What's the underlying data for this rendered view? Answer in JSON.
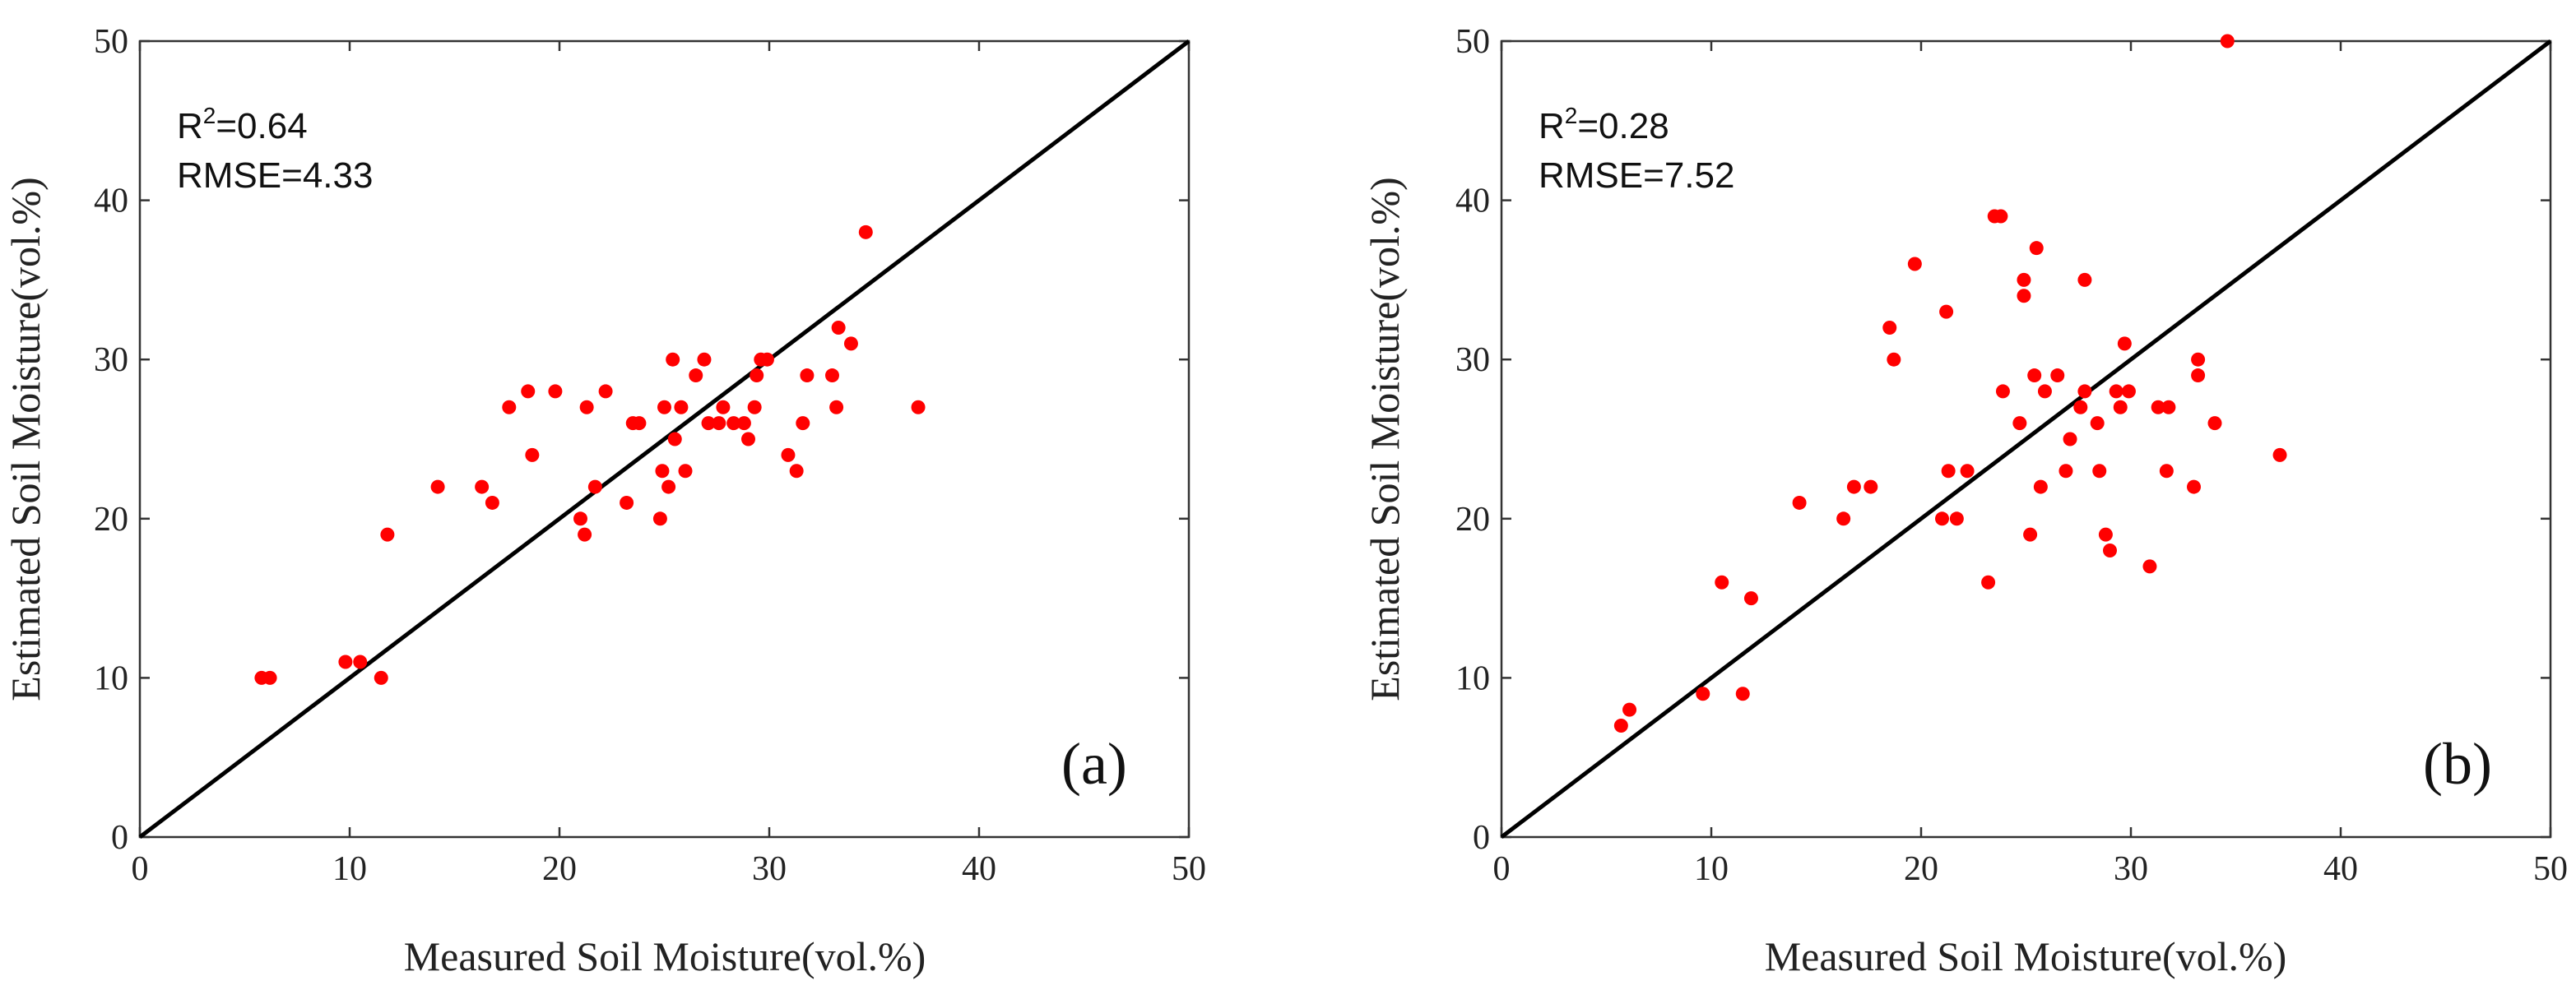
{
  "colors": {
    "point": "#ff0000",
    "line": "#000000",
    "axis": "#333333"
  },
  "chart_data": [
    {
      "type": "scatter",
      "panel_label": "(a)",
      "xlabel": "Measured Soil Moisture(vol.%)",
      "ylabel": "Estimated Soil Moisture(vol.%)",
      "xlim": [
        0,
        50
      ],
      "ylim": [
        0,
        50
      ],
      "xticks": [
        0,
        10,
        20,
        30,
        40,
        50
      ],
      "yticks": [
        0,
        10,
        20,
        30,
        40,
        50
      ],
      "reference_line": "1:1",
      "stats": {
        "r2_label": "R",
        "r2_sup": "2",
        "r2_value": "=0.64",
        "rmse": "RMSE=4.33"
      },
      "points": [
        [
          5.8,
          10
        ],
        [
          6.2,
          10
        ],
        [
          9.8,
          11
        ],
        [
          10.5,
          11
        ],
        [
          11.5,
          10
        ],
        [
          11.8,
          19
        ],
        [
          14.2,
          22
        ],
        [
          16.3,
          22
        ],
        [
          16.8,
          21
        ],
        [
          17.6,
          27
        ],
        [
          18.5,
          28
        ],
        [
          18.7,
          24
        ],
        [
          19.8,
          28
        ],
        [
          21.0,
          20
        ],
        [
          21.2,
          19
        ],
        [
          21.3,
          27
        ],
        [
          21.7,
          22
        ],
        [
          22.2,
          28
        ],
        [
          23.2,
          21
        ],
        [
          23.5,
          26
        ],
        [
          23.8,
          26
        ],
        [
          24.8,
          20
        ],
        [
          24.9,
          23
        ],
        [
          25.0,
          27
        ],
        [
          25.2,
          22
        ],
        [
          25.4,
          30
        ],
        [
          25.5,
          25
        ],
        [
          25.8,
          27
        ],
        [
          26.0,
          23
        ],
        [
          26.5,
          29
        ],
        [
          26.9,
          30
        ],
        [
          27.1,
          26
        ],
        [
          27.6,
          26
        ],
        [
          27.8,
          27
        ],
        [
          28.3,
          26
        ],
        [
          28.8,
          26
        ],
        [
          29.0,
          25
        ],
        [
          29.3,
          27
        ],
        [
          29.4,
          29
        ],
        [
          29.6,
          30
        ],
        [
          29.9,
          30
        ],
        [
          30.9,
          24
        ],
        [
          31.3,
          23
        ],
        [
          31.6,
          26
        ],
        [
          31.8,
          29
        ],
        [
          33.0,
          29
        ],
        [
          33.2,
          27
        ],
        [
          33.3,
          32
        ],
        [
          33.9,
          31
        ],
        [
          34.6,
          38
        ],
        [
          37.1,
          27
        ]
      ]
    },
    {
      "type": "scatter",
      "panel_label": "(b)",
      "xlabel": "Measured Soil Moisture(vol.%)",
      "ylabel": "Estimated Soil Moisture(vol.%)",
      "xlim": [
        0,
        50
      ],
      "ylim": [
        0,
        50
      ],
      "xticks": [
        0,
        10,
        20,
        30,
        40,
        50
      ],
      "yticks": [
        0,
        10,
        20,
        30,
        40,
        50
      ],
      "reference_line": "1:1",
      "stats": {
        "r2_label": "R",
        "r2_sup": "2",
        "r2_value": "=0.28",
        "rmse": "RMSE=7.52"
      },
      "points": [
        [
          5.7,
          7
        ],
        [
          6.1,
          8
        ],
        [
          9.6,
          9
        ],
        [
          10.5,
          16
        ],
        [
          11.5,
          9
        ],
        [
          11.9,
          15
        ],
        [
          14.2,
          21
        ],
        [
          16.3,
          20
        ],
        [
          16.8,
          22
        ],
        [
          17.6,
          22
        ],
        [
          18.5,
          32
        ],
        [
          18.7,
          30
        ],
        [
          19.7,
          36
        ],
        [
          21.0,
          20
        ],
        [
          21.2,
          33
        ],
        [
          21.3,
          23
        ],
        [
          21.7,
          20
        ],
        [
          22.2,
          23
        ],
        [
          23.2,
          16
        ],
        [
          23.5,
          39
        ],
        [
          23.8,
          39
        ],
        [
          23.9,
          28
        ],
        [
          24.7,
          26
        ],
        [
          24.9,
          35
        ],
        [
          24.9,
          34
        ],
        [
          25.2,
          19
        ],
        [
          25.4,
          29
        ],
        [
          25.5,
          37
        ],
        [
          25.7,
          22
        ],
        [
          25.9,
          28
        ],
        [
          26.5,
          29
        ],
        [
          26.9,
          23
        ],
        [
          27.1,
          25
        ],
        [
          27.6,
          27
        ],
        [
          27.8,
          28
        ],
        [
          27.8,
          35
        ],
        [
          28.4,
          26
        ],
        [
          28.5,
          23
        ],
        [
          28.8,
          19
        ],
        [
          29.0,
          18
        ],
        [
          29.3,
          28
        ],
        [
          29.5,
          27
        ],
        [
          29.7,
          31
        ],
        [
          29.9,
          28
        ],
        [
          30.9,
          17
        ],
        [
          31.3,
          27
        ],
        [
          31.7,
          23
        ],
        [
          31.8,
          27
        ],
        [
          33.0,
          22
        ],
        [
          33.2,
          30
        ],
        [
          33.2,
          29
        ],
        [
          34.0,
          26
        ],
        [
          34.6,
          50
        ],
        [
          37.1,
          24
        ]
      ]
    }
  ]
}
